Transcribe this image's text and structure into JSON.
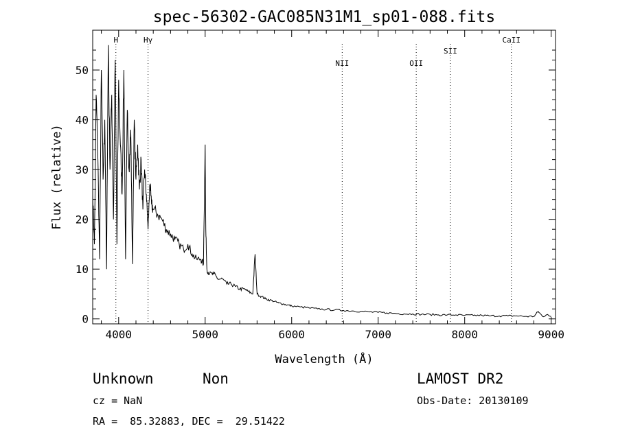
{
  "chart_data": {
    "type": "line",
    "title": "spec-56302-GAC085N31M1_sp01-088.fits",
    "xlabel": "Wavelength (Å)",
    "ylabel": "Flux (relative)",
    "xlim": [
      3700,
      9050
    ],
    "ylim": [
      -1,
      58
    ],
    "xticks": [
      4000,
      5000,
      6000,
      7000,
      8000,
      9000
    ],
    "yticks": [
      0,
      10,
      20,
      30,
      40,
      50
    ],
    "grid": false,
    "lines": [
      {
        "label": "H",
        "x": 3968
      },
      {
        "label": "Hγ",
        "x": 4340
      },
      {
        "label": "NII",
        "x": 6584
      },
      {
        "label": "OII",
        "x": 7440
      },
      {
        "label": "SII",
        "x": 7835
      },
      {
        "label": "CaII",
        "x": 8540
      }
    ],
    "series": [
      {
        "x": [
          3700,
          3720,
          3740,
          3760,
          3780,
          3800,
          3820,
          3840,
          3860,
          3880,
          3900,
          3920,
          3940,
          3960,
          3980,
          4000,
          4020,
          4040,
          4060,
          4080,
          4100,
          4120,
          4140,
          4160,
          4180,
          4200,
          4220,
          4240,
          4260,
          4280,
          4300,
          4320,
          4340,
          4360,
          4380,
          4400,
          4450,
          4500,
          4550,
          4600,
          4650,
          4700,
          4750,
          4800,
          4850,
          4900,
          4950,
          4980,
          5000,
          5007,
          5020,
          5050,
          5100,
          5150,
          5200,
          5250,
          5300,
          5350,
          5400,
          5450,
          5500,
          5550,
          5577,
          5600,
          5650,
          5700,
          5750,
          5800,
          5850,
          5900,
          5950,
          6000,
          6100,
          6200,
          6300,
          6400,
          6500,
          6600,
          6700,
          6800,
          6900,
          7000,
          7100,
          7200,
          7300,
          7400,
          7500,
          7600,
          7700,
          7800,
          7900,
          8000,
          8100,
          8200,
          8300,
          8400,
          8500,
          8600,
          8700,
          8800,
          8850,
          8900,
          8950,
          9000
        ],
        "values": [
          25,
          15,
          45,
          32,
          12,
          50,
          28,
          40,
          10,
          55,
          30,
          45,
          20,
          52,
          15,
          48,
          35,
          25,
          50,
          12,
          42,
          30,
          38,
          11,
          40,
          28,
          35,
          26,
          32,
          22,
          30,
          25,
          18,
          27,
          23,
          22,
          21,
          20,
          18,
          17,
          16,
          15,
          14,
          15,
          13,
          12,
          12,
          11,
          35,
          18,
          10,
          9,
          9,
          8,
          8,
          7,
          7,
          6.5,
          6,
          6,
          5.5,
          5,
          13,
          5,
          4.5,
          4,
          3.8,
          3.5,
          3.2,
          3,
          2.8,
          2.6,
          2.4,
          2.2,
          2.0,
          1.9,
          1.8,
          1.7,
          1.6,
          1.5,
          1.4,
          1.3,
          1.2,
          1.1,
          1.0,
          1.0,
          0.9,
          0.9,
          0.8,
          0.8,
          0.8,
          0.7,
          0.7,
          0.7,
          0.6,
          0.6,
          0.6,
          0.6,
          0.5,
          0.5,
          1.5,
          0.5,
          0.8,
          0.5
        ]
      }
    ]
  },
  "info": {
    "class": "Unknown",
    "subclass": "Non",
    "survey": "LAMOST DR2",
    "cz": "cz = NaN",
    "obs_date": "Obs-Date: 20130109",
    "coords": "RA =  85.32883, DEC =  29.51422"
  }
}
